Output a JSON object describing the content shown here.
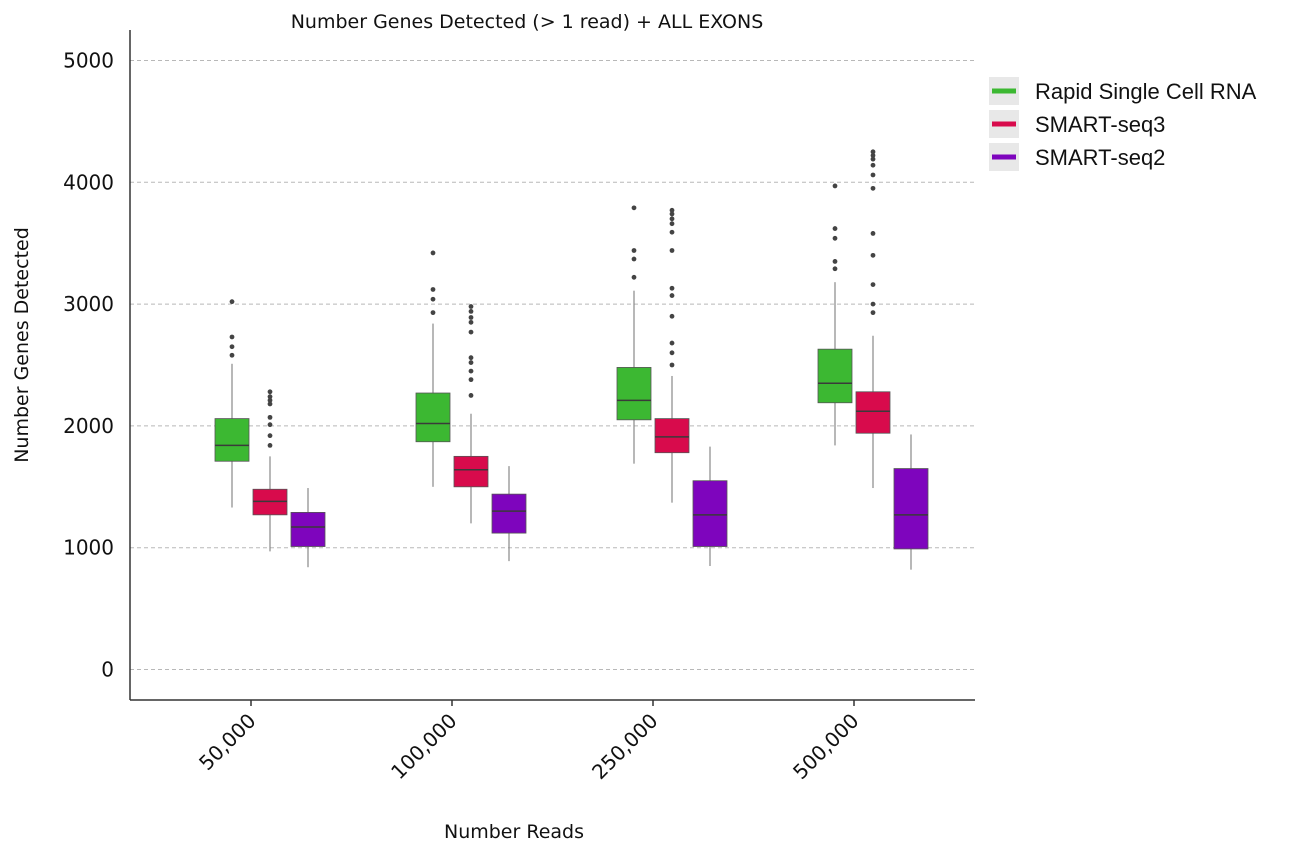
{
  "chart_data": {
    "type": "box",
    "title": "Number Genes Detected (> 1 read) + ALL EXONS",
    "xlabel": "Number Reads",
    "ylabel": "Number Genes Detected",
    "ylim": [
      -250,
      5250
    ],
    "yticks": [
      0,
      1000,
      2000,
      3000,
      4000,
      5000
    ],
    "ytick_labels": [
      "0",
      "1000",
      "2000",
      "3000",
      "4000",
      "5000"
    ],
    "grid": "horizontal dashed",
    "legend_position": "top-right",
    "categories": [
      "50,000",
      "100,000",
      "250,000",
      "500,000"
    ],
    "series": [
      {
        "name": "Rapid Single Cell RNA",
        "color": "#3cb832",
        "boxes": [
          {
            "whisker_low": 1330,
            "q1": 1710,
            "median": 1840,
            "q3": 2060,
            "whisker_high": 2510,
            "outliers": [
              2580,
              2650,
              2730,
              3020
            ]
          },
          {
            "whisker_low": 1500,
            "q1": 1870,
            "median": 2020,
            "q3": 2270,
            "whisker_high": 2840,
            "outliers": [
              2930,
              3040,
              3120,
              3420
            ]
          },
          {
            "whisker_low": 1690,
            "q1": 2050,
            "median": 2210,
            "q3": 2480,
            "whisker_high": 3110,
            "outliers": [
              3220,
              3370,
              3440,
              3790
            ]
          },
          {
            "whisker_low": 1840,
            "q1": 2190,
            "median": 2350,
            "q3": 2630,
            "whisker_high": 3180,
            "outliers": [
              3290,
              3350,
              3540,
              3620,
              3970
            ]
          }
        ]
      },
      {
        "name": "SMART-seq3",
        "color": "#d80b4c",
        "boxes": [
          {
            "whisker_low": 970,
            "q1": 1270,
            "median": 1380,
            "q3": 1480,
            "whisker_high": 1750,
            "outliers": [
              1840,
              1920,
              2010,
              2070,
              2180,
              2210,
              2240,
              2280
            ]
          },
          {
            "whisker_low": 1200,
            "q1": 1500,
            "median": 1640,
            "q3": 1750,
            "whisker_high": 2100,
            "outliers": [
              2250,
              2380,
              2450,
              2520,
              2560,
              2770,
              2850,
              2890,
              2940,
              2980
            ]
          },
          {
            "whisker_low": 1370,
            "q1": 1780,
            "median": 1910,
            "q3": 2060,
            "whisker_high": 2410,
            "outliers": [
              2500,
              2600,
              2680,
              2900,
              3070,
              3130,
              3440,
              3590,
              3660,
              3700,
              3740,
              3770
            ]
          },
          {
            "whisker_low": 1490,
            "q1": 1940,
            "median": 2120,
            "q3": 2280,
            "whisker_high": 2740,
            "outliers": [
              2930,
              3000,
              3160,
              3400,
              3580,
              3950,
              4060,
              4140,
              4190,
              4220,
              4250
            ]
          }
        ]
      },
      {
        "name": "SMART-seq2",
        "color": "#7e05bd",
        "boxes": [
          {
            "whisker_low": 840,
            "q1": 1010,
            "median": 1170,
            "q3": 1290,
            "whisker_high": 1490,
            "outliers": []
          },
          {
            "whisker_low": 890,
            "q1": 1120,
            "median": 1300,
            "q3": 1440,
            "whisker_high": 1670,
            "outliers": []
          },
          {
            "whisker_low": 850,
            "q1": 1010,
            "median": 1270,
            "q3": 1550,
            "whisker_high": 1830,
            "outliers": []
          },
          {
            "whisker_low": 820,
            "q1": 990,
            "median": 1270,
            "q3": 1650,
            "whisker_high": 1930,
            "outliers": []
          }
        ]
      }
    ]
  }
}
